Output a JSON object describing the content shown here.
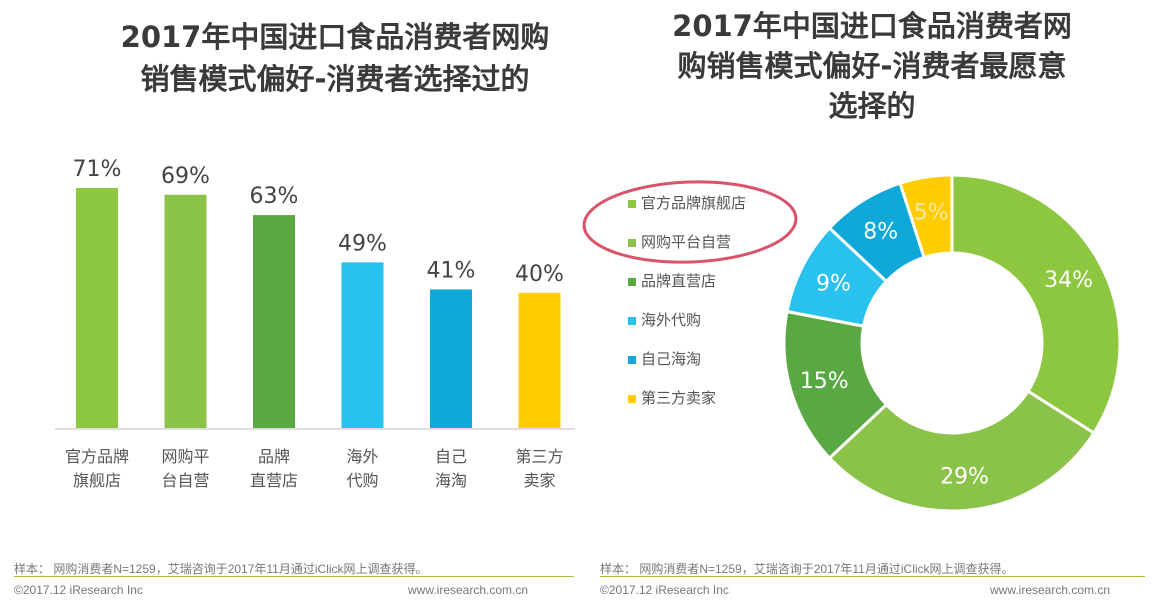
{
  "left_panel": {
    "title_lines": [
      "2017年中国进口食品消费者网购",
      "销售模式偏好-消费者选择过的"
    ],
    "note": "样本： 网购消费者N=1259，艾瑞咨询于2017年11月通过iClick网上调查获得。",
    "copyright": "©2017.12 iResearch Inc",
    "website": "www.iresearch.com.cn"
  },
  "right_panel": {
    "title_lines": [
      "2017年中国进口食品消费者网",
      "购销售模式偏好-消费者最愿意",
      "选择的"
    ],
    "note": "样本： 网购消费者N=1259，艾瑞咨询于2017年11月通过iClick网上调查获得。",
    "copyright": "©2017.12 iResearch Inc",
    "website": "www.iresearch.com.cn"
  },
  "colors": {
    "official": "#8dc63f",
    "platform": "#8bc34a",
    "brand": "#5aa843",
    "overseas": "#29c1ee",
    "daigou": "#0fa8d8",
    "third": "#ffcc00",
    "highlight": "#d9536a",
    "rule": "#9fc33a"
  },
  "chart_data": [
    {
      "type": "bar",
      "title": "2017年中国进口食品消费者网购销售模式偏好-消费者选择过的",
      "categories": [
        [
          "官方品牌",
          "旗舰店"
        ],
        [
          "网购平",
          "台自营"
        ],
        [
          "品牌",
          "直营店"
        ],
        [
          "海外",
          "代购"
        ],
        [
          "自己",
          "海淘"
        ],
        [
          "第三方",
          "卖家"
        ]
      ],
      "values": [
        71,
        69,
        63,
        49,
        41,
        40
      ],
      "value_labels": [
        "71%",
        "69%",
        "63%",
        "49%",
        "41%",
        "40%"
      ],
      "bar_colors": [
        "#8dc63f",
        "#8bc34a",
        "#5aa843",
        "#29c1ee",
        "#0fa8d8",
        "#ffcc00"
      ],
      "ylim": [
        0,
        100
      ],
      "grid": false
    },
    {
      "type": "pie",
      "donut": true,
      "title": "2017年中国进口食品消费者网购销售模式偏好-消费者最愿意选择的",
      "labels": [
        "官方品牌旗舰店",
        "网购平台自营",
        "品牌直营店",
        "海外代购",
        "自己海淘",
        "第三方卖家"
      ],
      "values": [
        34,
        29,
        15,
        9,
        8,
        5
      ],
      "value_labels": [
        "34%",
        "29%",
        "15%",
        "9%",
        "8%",
        "5%"
      ],
      "colors": [
        "#8dc63f",
        "#8bc34a",
        "#5aa843",
        "#29c1ee",
        "#0fa8d8",
        "#ffcc00"
      ],
      "legend_position": "left",
      "highlighted_legend_items": [
        "官方品牌旗舰店",
        "网购平台自营"
      ]
    }
  ]
}
